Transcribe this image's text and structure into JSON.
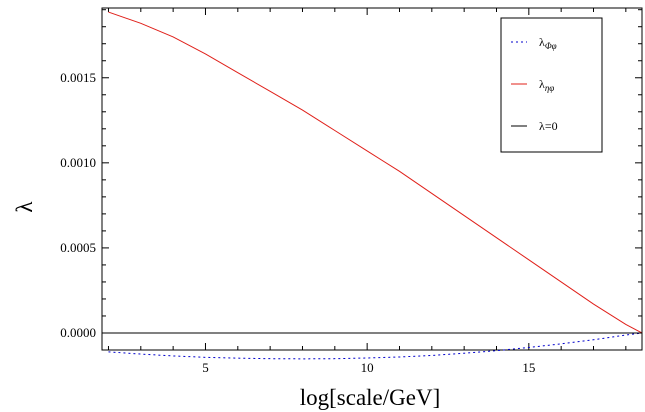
{
  "chart_data": {
    "type": "line",
    "title": "",
    "xlabel": "log[scale/GeV]",
    "ylabel": "λ",
    "xlim": [
      1.8,
      18.5
    ],
    "ylim": [
      -0.0001,
      0.00191
    ],
    "x_ticks": [
      5,
      10,
      15
    ],
    "x_tick_labels": [
      "5",
      "10",
      "15"
    ],
    "y_ticks": [
      0,
      0.0005,
      0.001,
      0.0015
    ],
    "y_tick_labels": [
      "0.0000",
      "0.0005",
      "0.0010",
      "0.0015"
    ],
    "grid": false,
    "legend_position": "top-right",
    "series": [
      {
        "name": "λΦφ",
        "legend_main": "λ",
        "legend_sub": "Φφ",
        "color": "#0000cc",
        "style": "dotted",
        "x": [
          2,
          3,
          4,
          5,
          6,
          7,
          8,
          9,
          10,
          11,
          12,
          13,
          14,
          15,
          16,
          17,
          18,
          18.5
        ],
        "y": [
          -0.000111,
          -0.000124,
          -0.000135,
          -0.000143,
          -0.000148,
          -0.000151,
          -0.000152,
          -0.000151,
          -0.000147,
          -0.000141,
          -0.000132,
          -0.000119,
          -0.000104,
          -8.5e-05,
          -6.4e-05,
          -4e-05,
          -1.2e-05,
          0.0
        ]
      },
      {
        "name": "ληφ",
        "legend_main": "λ",
        "legend_sub": "ηφ",
        "color": "#e0201a",
        "style": "solid",
        "x": [
          2,
          3,
          4,
          5,
          6,
          7,
          8,
          9,
          10,
          11,
          12,
          13,
          14,
          15,
          16,
          17,
          18,
          18.5
        ],
        "y": [
          0.001886,
          0.00182,
          0.00174,
          0.00164,
          0.00153,
          0.00142,
          0.00131,
          0.00119,
          0.00107,
          0.00095,
          0.00082,
          0.00069,
          0.00056,
          0.00043,
          0.0003,
          0.00017,
          5e-05,
          0.0
        ]
      },
      {
        "name": "λ=0",
        "legend_main": "λ=0",
        "legend_sub": "",
        "color": "#000000",
        "style": "solid",
        "x": [
          1.8,
          18.5
        ],
        "y": [
          0,
          0
        ]
      }
    ]
  }
}
